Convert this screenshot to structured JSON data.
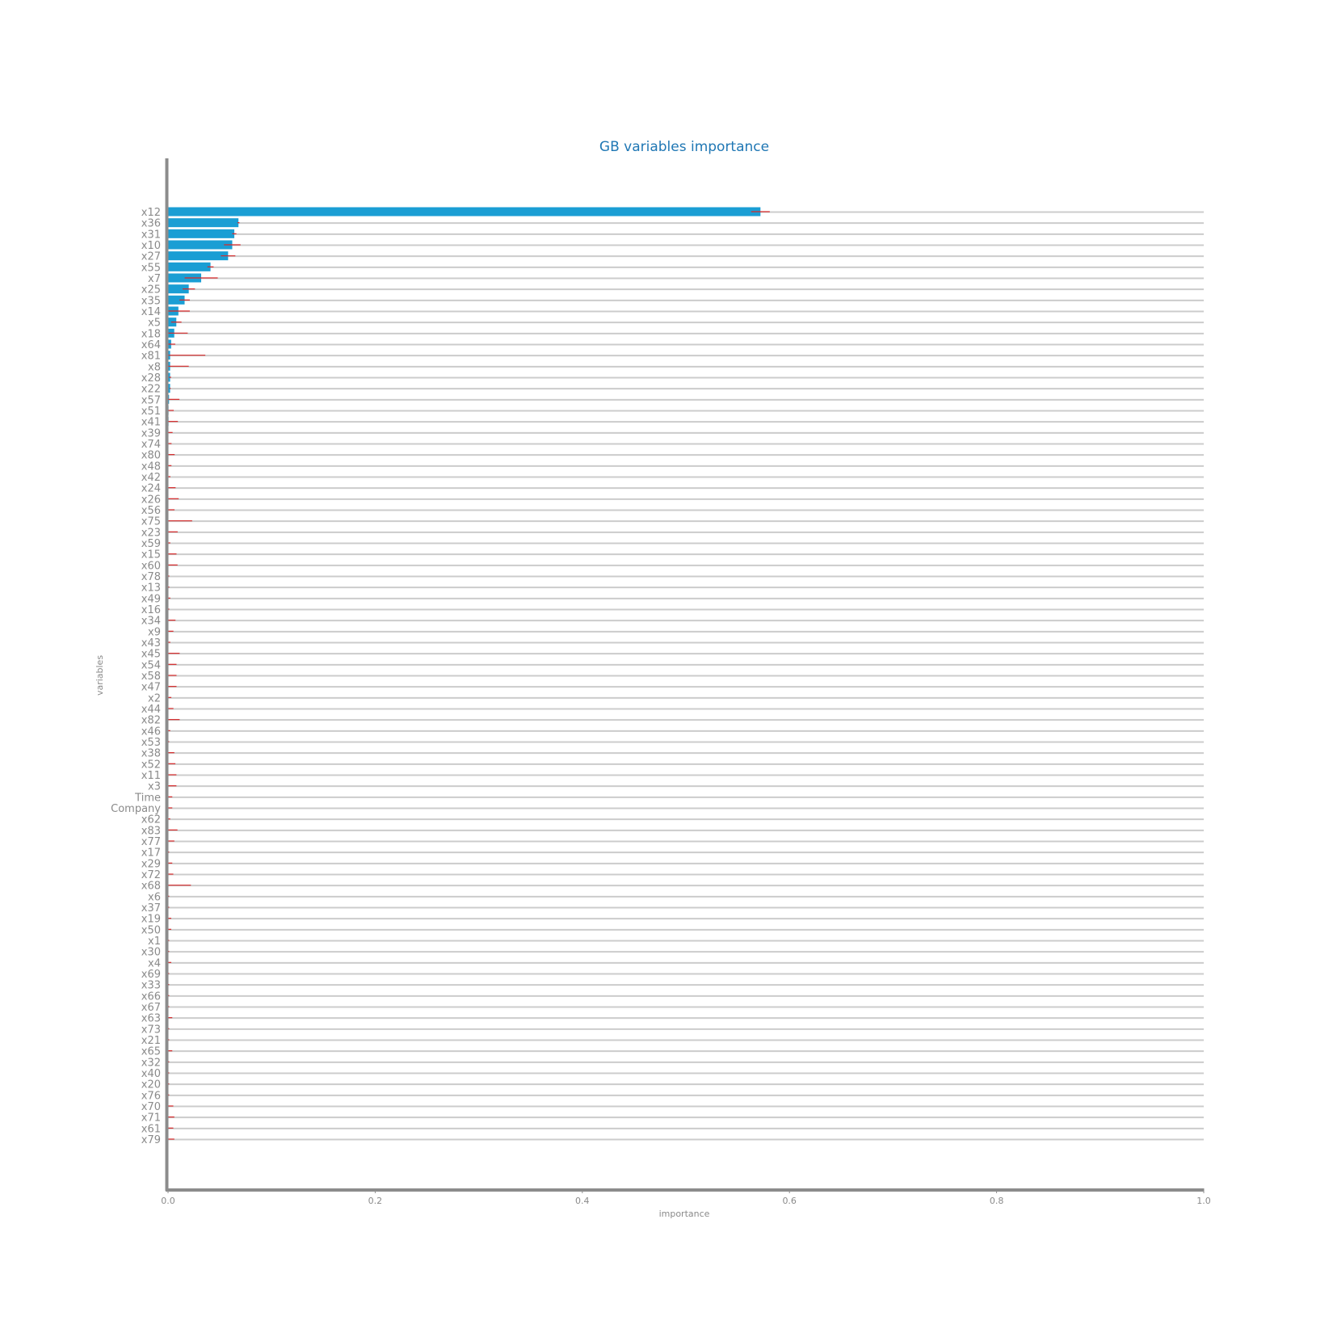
{
  "chart_data": {
    "type": "bar",
    "orientation": "horizontal",
    "title": "GB variables importance",
    "xlabel": "importance",
    "ylabel": "variables",
    "xlim": [
      0,
      1.0
    ],
    "xticks": [
      "0.0",
      "0.2",
      "0.4",
      "0.6",
      "0.8",
      "1.0"
    ],
    "grid": "horizontal",
    "colors": {
      "bar": "#1a9ed4",
      "error_bar": "#d62728",
      "title": "#1f77b4"
    },
    "categories": [
      "x12",
      "x36",
      "x31",
      "x10",
      "x27",
      "x55",
      "x7",
      "x25",
      "x35",
      "x14",
      "x5",
      "x18",
      "x64",
      "x81",
      "x8",
      "x28",
      "x22",
      "x57",
      "x51",
      "x41",
      "x39",
      "x74",
      "x80",
      "x48",
      "x42",
      "x24",
      "x26",
      "x56",
      "x75",
      "x23",
      "x59",
      "x15",
      "x60",
      "x78",
      "x13",
      "x49",
      "x16",
      "x34",
      "x9",
      "x43",
      "x45",
      "x54",
      "x58",
      "x47",
      "x2",
      "x44",
      "x82",
      "x46",
      "x53",
      "x38",
      "x52",
      "x11",
      "x3",
      "Time",
      "Company",
      "x62",
      "x83",
      "x77",
      "x17",
      "x29",
      "x72",
      "x68",
      "x6",
      "x37",
      "x19",
      "x50",
      "x1",
      "x30",
      "x4",
      "x69",
      "x33",
      "x66",
      "x67",
      "x63",
      "x73",
      "x21",
      "x65",
      "x32",
      "x40",
      "x20",
      "x76",
      "x70",
      "x71",
      "x61",
      "x79"
    ],
    "values": [
      0.572,
      0.068,
      0.064,
      0.062,
      0.058,
      0.041,
      0.032,
      0.02,
      0.016,
      0.01,
      0.008,
      0.006,
      0.003,
      0.002,
      0.002,
      0.002,
      0.002,
      0.001,
      0.0005,
      0.0005,
      0.0004,
      0.0004,
      0.0004,
      0.0003,
      0.0003,
      0.0003,
      0.0003,
      0.0003,
      0.0003,
      0.0003,
      0.0002,
      0.0002,
      0.0002,
      0.0002,
      0.0002,
      0.0002,
      0.0002,
      0.0002,
      0.0002,
      0.0002,
      0.0002,
      0.0002,
      0.0002,
      0.0002,
      0.0002,
      0.0002,
      0.0002,
      0.0001,
      0.0001,
      0.0001,
      0.0001,
      0.0001,
      0.0001,
      0.0001,
      0.0001,
      0.0001,
      0.0001,
      0.0001,
      0.0001,
      0.0001,
      0.0001,
      0.0001,
      0.0001,
      0.0001,
      0.0001,
      0.0001,
      0.0001,
      0.0001,
      0.0001,
      0.0001,
      0.0001,
      0.0001,
      0.0001,
      0.0001,
      0.0001,
      0.0001,
      0.0001,
      0.0001,
      0.0001,
      0.0001,
      0.0001,
      0.0001,
      0.0001,
      0.0001,
      0.0001
    ],
    "errors": [
      0.009,
      0.001,
      0.002,
      0.008,
      0.007,
      0.003,
      0.016,
      0.006,
      0.005,
      0.011,
      0.005,
      0.013,
      0.004,
      0.034,
      0.018,
      0.001,
      0.0005,
      0.01,
      0.005,
      0.009,
      0.004,
      0.003,
      0.006,
      0.003,
      0.002,
      0.007,
      0.01,
      0.006,
      0.023,
      0.009,
      0.002,
      0.008,
      0.009,
      0.001,
      0.001,
      0.002,
      0.001,
      0.007,
      0.005,
      0.002,
      0.011,
      0.008,
      0.008,
      0.008,
      0.003,
      0.005,
      0.011,
      0.002,
      0.001,
      0.006,
      0.007,
      0.008,
      0.008,
      0.004,
      0.004,
      0.002,
      0.009,
      0.006,
      0.001,
      0.004,
      0.005,
      0.022,
      0.001,
      0.001,
      0.003,
      0.003,
      0.001,
      0.001,
      0.003,
      0.001,
      0.001,
      0.001,
      0.001,
      0.004,
      0.001,
      0.001,
      0.004,
      0.001,
      0.001,
      0.001,
      0.001,
      0.005,
      0.006,
      0.005,
      0.006
    ]
  }
}
